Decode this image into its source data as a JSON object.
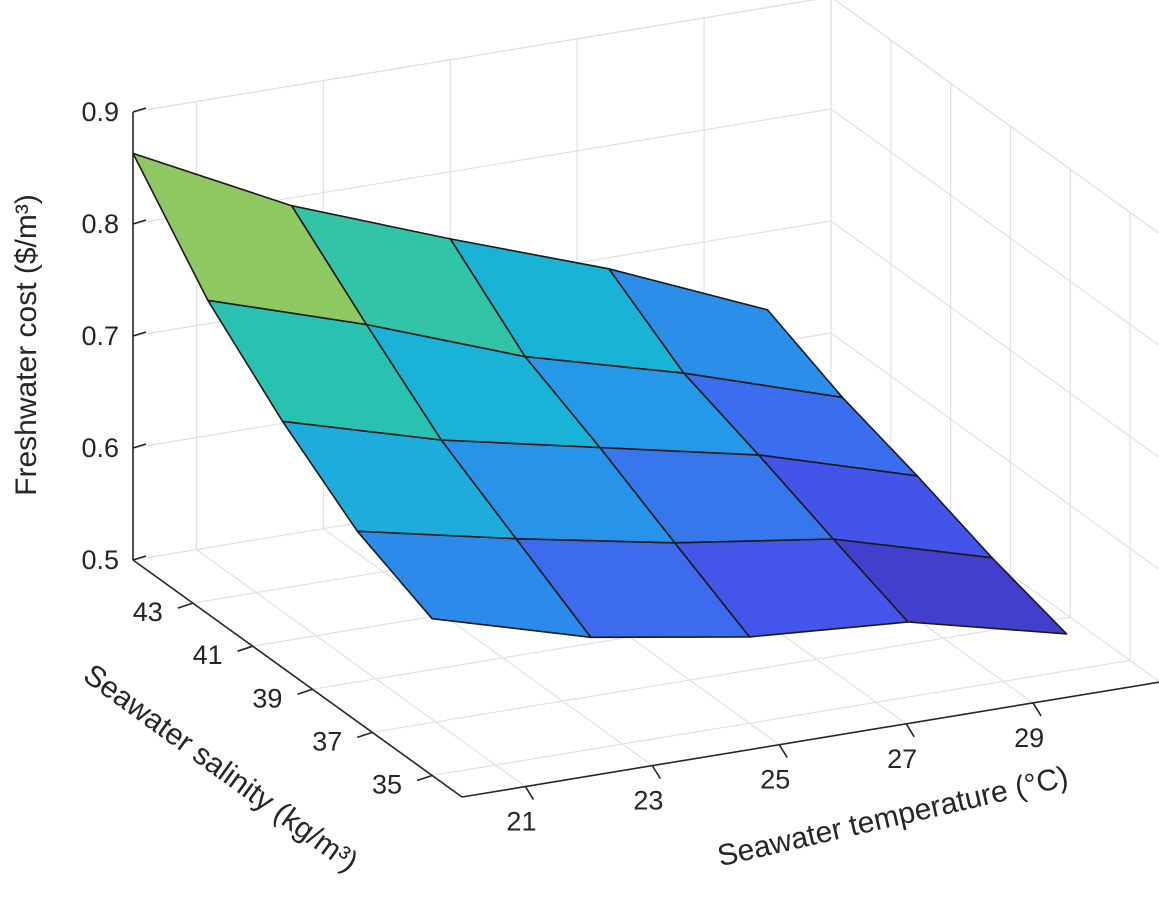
{
  "chart_data": {
    "type": "surface",
    "title": "",
    "xlabel": "Seawater temperature (°C)",
    "ylabel": "Seawater salinity (kg/m³)",
    "zlabel": "Freshwater cost ($/m³)",
    "x": [
      20,
      22.5,
      25,
      27.5,
      30
    ],
    "y": [
      35,
      37.5,
      40,
      42.5,
      45
    ],
    "xticks": [
      "21",
      "23",
      "25",
      "27",
      "29"
    ],
    "xtick_values": [
      21,
      23,
      25,
      27,
      29
    ],
    "yticks": [
      "35",
      "37",
      "39",
      "41",
      "43"
    ],
    "ytick_values": [
      35,
      37,
      39,
      41,
      43
    ],
    "zticks": [
      "0.5",
      "0.6",
      "0.7",
      "0.8",
      "0.9"
    ],
    "zlim": [
      0.5,
      0.9
    ],
    "xlim": [
      20,
      31
    ],
    "ylim": [
      34,
      45
    ],
    "grid": true,
    "colormap": "parula",
    "z": [
      [
        0.64,
        0.6,
        0.577,
        0.567,
        0.533
      ],
      [
        0.67,
        0.64,
        0.613,
        0.593,
        0.553
      ],
      [
        0.72,
        0.68,
        0.65,
        0.62,
        0.578
      ],
      [
        0.78,
        0.735,
        0.683,
        0.645,
        0.6
      ],
      [
        0.863,
        0.793,
        0.74,
        0.69,
        0.63
      ]
    ]
  }
}
